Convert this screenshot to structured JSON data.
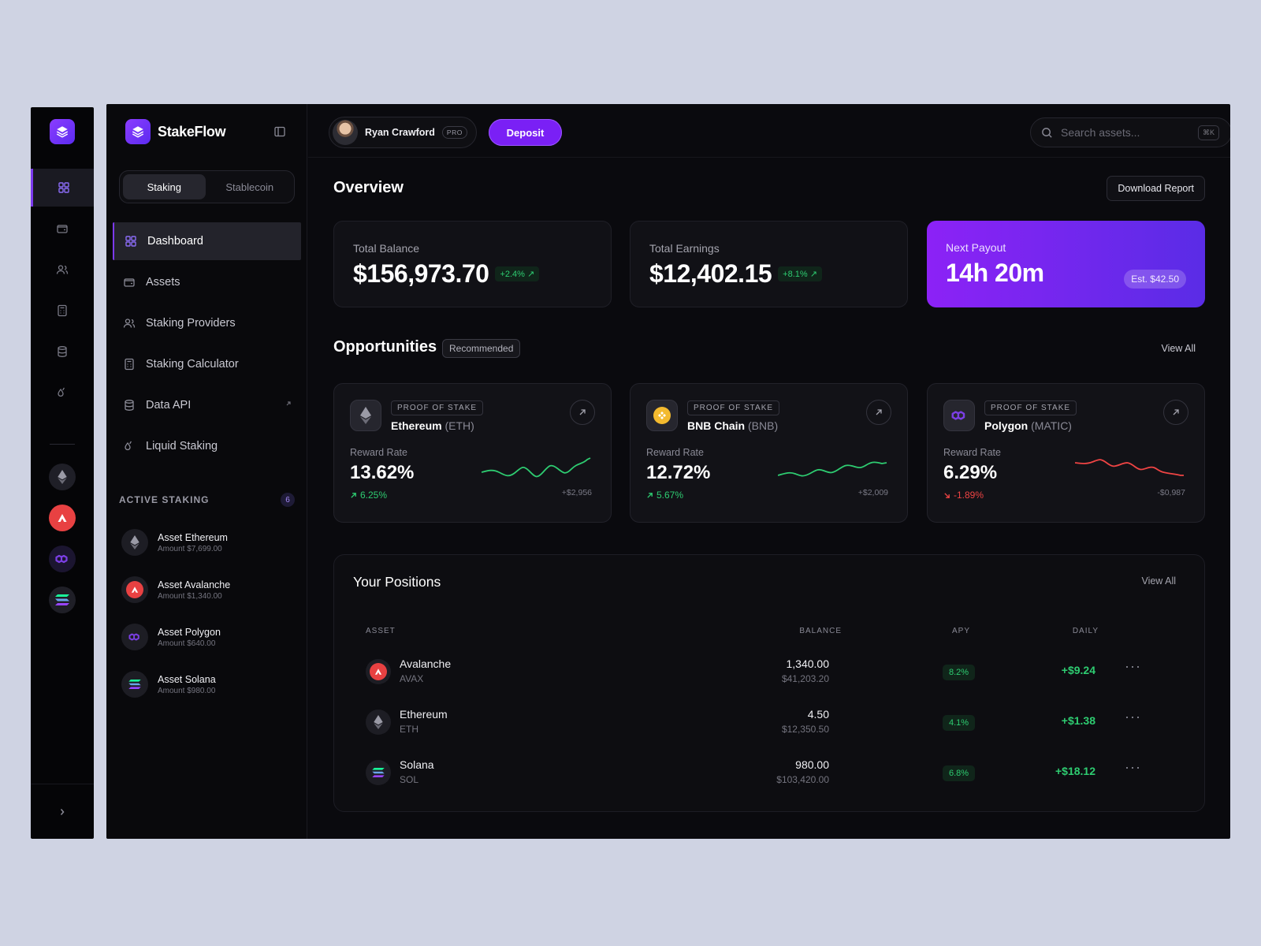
{
  "brand": {
    "name": "StakeFlow",
    "accent": "#7c3aed"
  },
  "tabs": {
    "staking": "Staking",
    "stablecoin": "Stablecoin"
  },
  "nav": [
    {
      "label": "Dashboard",
      "icon": "grid-icon"
    },
    {
      "label": "Assets",
      "icon": "wallet-icon"
    },
    {
      "label": "Staking Providers",
      "icon": "users-icon"
    },
    {
      "label": "Staking Calculator",
      "icon": "calculator-icon"
    },
    {
      "label": "Data API",
      "icon": "database-icon"
    },
    {
      "label": "Liquid Staking",
      "icon": "drops-icon"
    }
  ],
  "active_staking": {
    "title": "ACTIVE STAKING",
    "count": "6",
    "items": [
      {
        "name": "Asset Ethereum",
        "amount": "Amount $7,699.00"
      },
      {
        "name": "Asset Avalanche",
        "amount": "Amount $1,340.00"
      },
      {
        "name": "Asset Polygon",
        "amount": "Amount $640.00"
      },
      {
        "name": "Asset Solana",
        "amount": "Amount $980.00"
      }
    ]
  },
  "user": {
    "name": "Ryan Crawford",
    "badge": "PRO"
  },
  "header": {
    "deposit": "Deposit",
    "search_placeholder": "Search assets...",
    "search_shortcut": "⌘K"
  },
  "overview": {
    "title": "Overview",
    "download": "Download Report",
    "total_balance": {
      "label": "Total Balance",
      "value": "$156,973.70",
      "change": "+2.4% ↗"
    },
    "total_earnings": {
      "label": "Total Earnings",
      "value": "$12,402.15",
      "change": "+8.1% ↗"
    },
    "next_payout": {
      "label": "Next Payout",
      "value": "14h 20m",
      "estimate": "Est. $42.50"
    }
  },
  "opportunities": {
    "title": "Opportunities",
    "badge": "Recommended",
    "view_all": "View All",
    "items": [
      {
        "tag": "PROOF OF STAKE",
        "name": "Ethereum",
        "ticker": "(ETH)",
        "reward_label": "Reward Rate",
        "rate": "13.62%",
        "change": "6.25%",
        "amount": "+$2,956",
        "trend": "up"
      },
      {
        "tag": "PROOF OF STAKE",
        "name": "BNB Chain",
        "ticker": "(BNB)",
        "reward_label": "Reward Rate",
        "rate": "12.72%",
        "change": "5.67%",
        "amount": "+$2,009",
        "trend": "up"
      },
      {
        "tag": "PROOF OF STAKE",
        "name": "Polygon",
        "ticker": "(MATIC)",
        "reward_label": "Reward Rate",
        "rate": "6.29%",
        "change": "-1.89%",
        "amount": "-$0,987",
        "trend": "down"
      }
    ]
  },
  "positions": {
    "title": "Your Positions",
    "view_all": "View All",
    "columns": {
      "asset": "ASSET",
      "balance": "BALANCE",
      "apy": "APY",
      "daily": "DAILY"
    },
    "rows": [
      {
        "name": "Avalanche",
        "symbol": "AVAX",
        "balance": "1,340.00",
        "usd": "$41,203.20",
        "apy": "8.2%",
        "daily": "+$9.24"
      },
      {
        "name": "Ethereum",
        "symbol": "ETH",
        "balance": "4.50",
        "usd": "$12,350.50",
        "apy": "4.1%",
        "daily": "+$1.38"
      },
      {
        "name": "Solana",
        "symbol": "SOL",
        "balance": "980.00",
        "usd": "$103,420.00",
        "apy": "6.8%",
        "daily": "+$18.12"
      }
    ],
    "more": "···"
  },
  "colors": {
    "positive": "#2ecc71",
    "negative": "#ef4444",
    "avalanche": "#e84142",
    "polygon": "#7b3fe4",
    "bnb": "#f3ba2f"
  }
}
